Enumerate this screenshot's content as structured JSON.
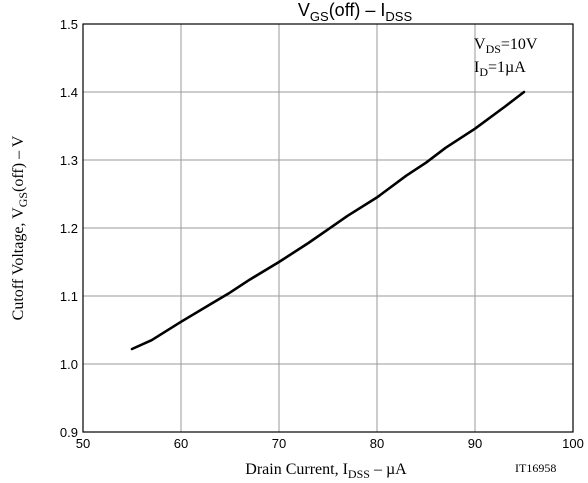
{
  "chart_data": {
    "type": "line",
    "title": {
      "main": "V",
      "main_sub": "GS",
      "main_rest": "(off)  –  I",
      "main_sub2": "DSS"
    },
    "xlabel": {
      "main": "Drain Current, I",
      "sub": "DSS",
      "rest": "  –  µA"
    },
    "ylabel": {
      "main": "Cutoff  Voltage, V",
      "sub": "GS",
      "rest": "(off)  –  V"
    },
    "xlim": [
      50,
      100
    ],
    "ylim": [
      0.9,
      1.5
    ],
    "xticks": [
      "50",
      "60",
      "70",
      "80",
      "90",
      "100"
    ],
    "yticks": [
      "0.9",
      "1.0",
      "1.1",
      "1.2",
      "1.3",
      "1.4",
      "1.5"
    ],
    "grid": true,
    "annotations": [
      {
        "main": "V",
        "sub": "DS",
        "rest": "=10V"
      },
      {
        "main": "I",
        "sub": "D",
        "rest": "=1µA"
      }
    ],
    "figure_id": "IT16958",
    "series": [
      {
        "x": [
          55,
          57,
          60,
          63,
          65,
          67,
          70,
          73,
          75,
          77,
          80,
          83,
          85,
          87,
          90,
          93,
          95
        ],
        "y": [
          1.022,
          1.035,
          1.062,
          1.088,
          1.105,
          1.124,
          1.15,
          1.178,
          1.198,
          1.218,
          1.245,
          1.277,
          1.296,
          1.318,
          1.346,
          1.378,
          1.4
        ]
      }
    ]
  }
}
